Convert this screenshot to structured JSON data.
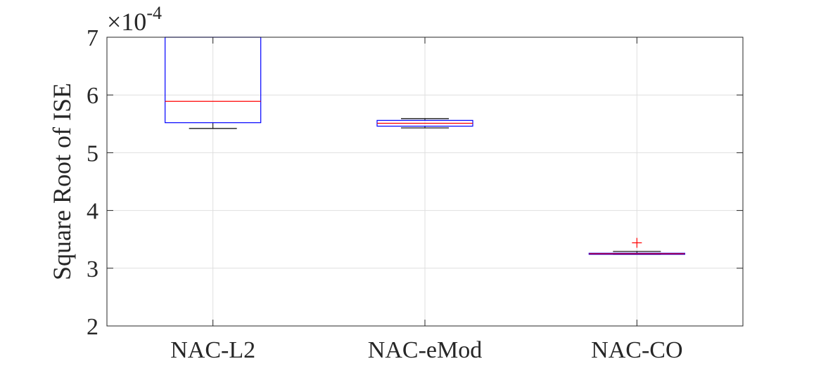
{
  "chart_data": {
    "type": "boxplot",
    "title": "",
    "xlabel": "",
    "ylabel": "Square Root of ISE",
    "y_exponent_label": "×10",
    "y_exponent_power": "-4",
    "ylim": [
      2,
      7
    ],
    "yticks": [
      2,
      3,
      4,
      5,
      6,
      7
    ],
    "ytick_labels": [
      "2",
      "3",
      "4",
      "5",
      "6",
      "7"
    ],
    "grid": true,
    "categories": [
      "NAC-L2",
      "NAC-eMod",
      "NAC-CO"
    ],
    "boxes": [
      {
        "category": "NAC-L2",
        "whisker_low": 5.42,
        "q1": 5.52,
        "median": 5.89,
        "q3": 7.0,
        "whisker_high": 7.0,
        "outliers": []
      },
      {
        "category": "NAC-eMod",
        "whisker_low": 5.43,
        "q1": 5.46,
        "median": 5.51,
        "q3": 5.56,
        "whisker_high": 5.59,
        "outliers": []
      },
      {
        "category": "NAC-CO",
        "whisker_low": 3.24,
        "q1": 3.24,
        "median": 3.25,
        "q3": 3.26,
        "whisker_high": 3.29,
        "outliers": [
          3.44
        ]
      }
    ],
    "colors": {
      "box": "#0000ff",
      "median": "#ff0000",
      "whisker": "#000000",
      "outlier": "#ff0000",
      "grid": "#dfdfdf",
      "axis": "#262626"
    }
  }
}
